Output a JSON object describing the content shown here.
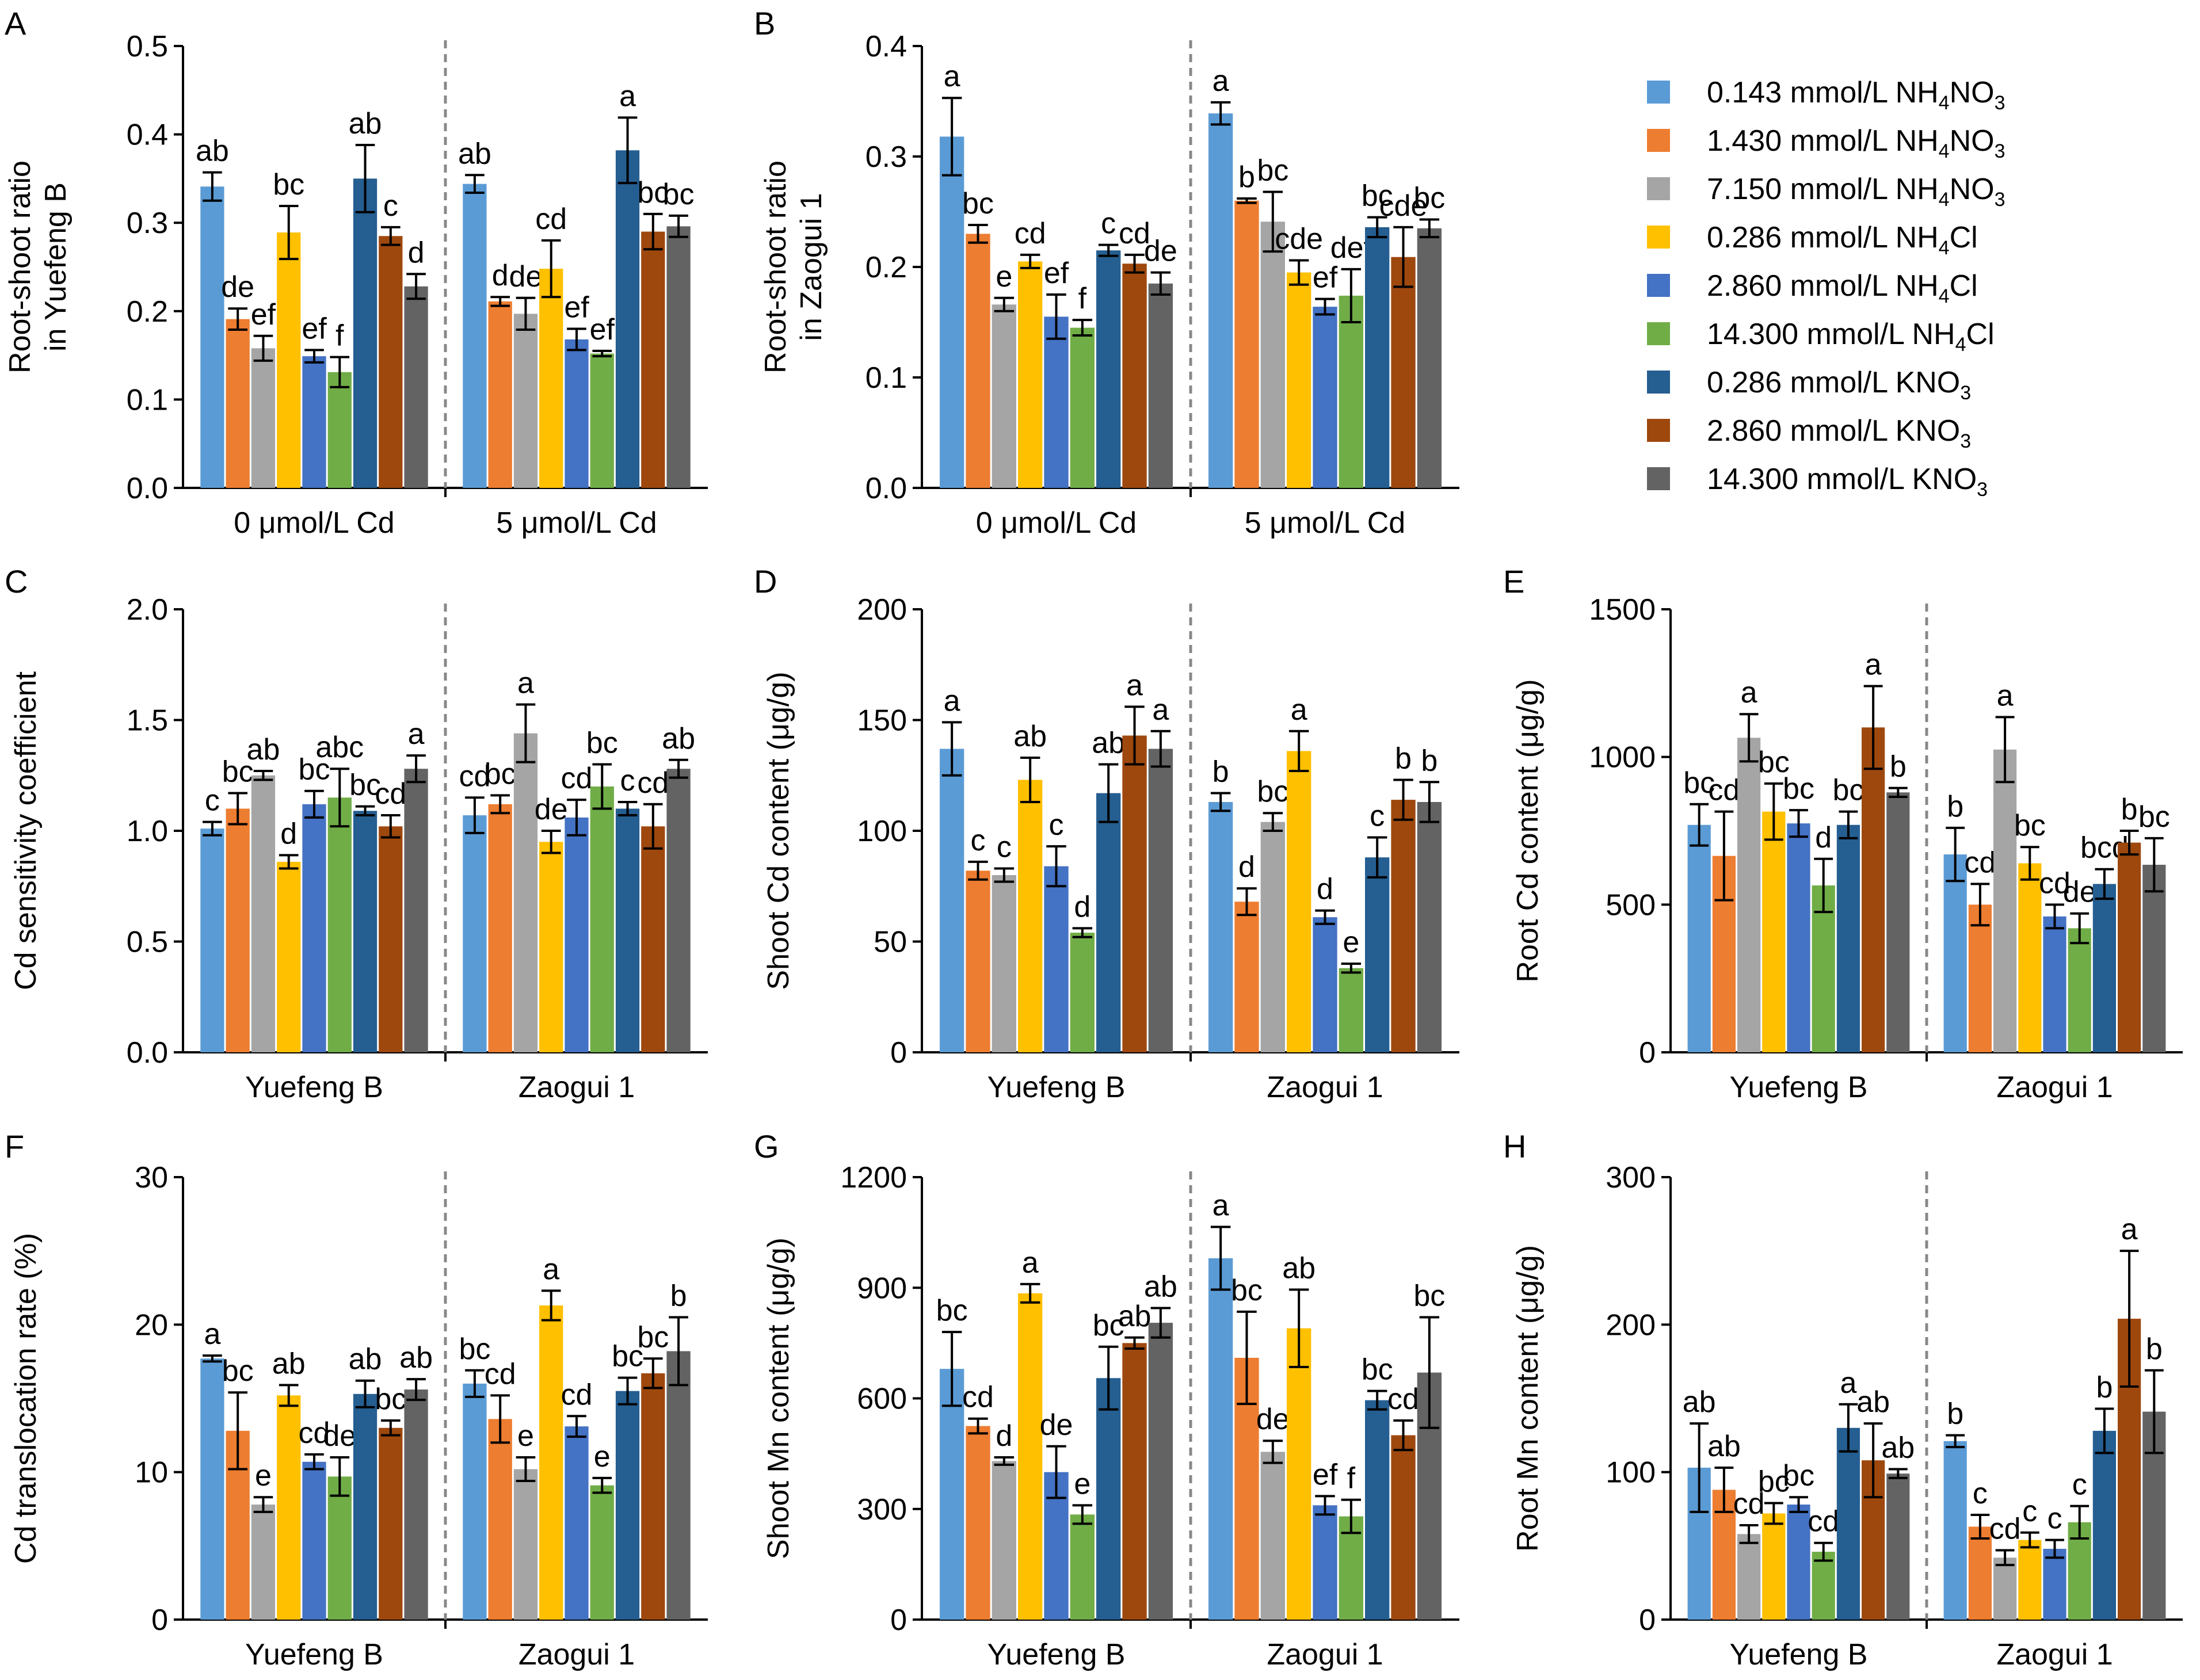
{
  "chart_data": [
    {
      "id": "A",
      "type": "bar",
      "panel_label": "A",
      "ylabel_lines": [
        "Root-shoot ratio",
        "in Yuefeng B"
      ],
      "ylim": [
        0,
        0.5
      ],
      "yticks": [
        "0.0",
        "0.1",
        "0.2",
        "0.3",
        "0.4",
        "0.5"
      ],
      "groups": [
        {
          "label": "0 μmol/L Cd",
          "values": [
            0.341,
            0.191,
            0.158,
            0.289,
            0.149,
            0.131,
            0.35,
            0.285,
            0.228
          ],
          "errors": [
            0.016,
            0.012,
            0.014,
            0.03,
            0.007,
            0.017,
            0.038,
            0.01,
            0.014
          ],
          "letters": [
            "ab",
            "de",
            "ef",
            "bc",
            "ef",
            "f",
            "ab",
            "c",
            "d"
          ]
        },
        {
          "label": "5 μmol/L Cd",
          "values": [
            0.344,
            0.211,
            0.197,
            0.248,
            0.168,
            0.152,
            0.382,
            0.29,
            0.296
          ],
          "errors": [
            0.01,
            0.005,
            0.018,
            0.032,
            0.012,
            0.003,
            0.037,
            0.02,
            0.012
          ],
          "letters": [
            "ab",
            "d",
            "de",
            "cd",
            "ef",
            "ef",
            "a",
            "bc",
            "bc"
          ]
        }
      ]
    },
    {
      "id": "B",
      "type": "bar",
      "panel_label": "B",
      "ylabel_lines": [
        "Root-shoot ratio",
        "in Zaogui 1"
      ],
      "ylim": [
        0,
        0.4
      ],
      "yticks": [
        "0.0",
        "0.1",
        "0.2",
        "0.3",
        "0.4"
      ],
      "groups": [
        {
          "label": "0 μmol/L Cd",
          "values": [
            0.318,
            0.23,
            0.166,
            0.205,
            0.155,
            0.145,
            0.215,
            0.203,
            0.185
          ],
          "errors": [
            0.035,
            0.008,
            0.006,
            0.006,
            0.02,
            0.007,
            0.005,
            0.008,
            0.01
          ],
          "letters": [
            "a",
            "bc",
            "e",
            "cd",
            "ef",
            "f",
            "c",
            "cd",
            "de"
          ]
        },
        {
          "label": "5 μmol/L Cd",
          "values": [
            0.339,
            0.26,
            0.241,
            0.195,
            0.164,
            0.174,
            0.236,
            0.209,
            0.235
          ],
          "errors": [
            0.01,
            0.002,
            0.027,
            0.011,
            0.007,
            0.024,
            0.009,
            0.027,
            0.008
          ],
          "letters": [
            "a",
            "b",
            "bc",
            "cde",
            "ef",
            "def",
            "bc",
            "cde",
            "bc"
          ]
        }
      ]
    },
    {
      "id": "C",
      "type": "bar",
      "panel_label": "C",
      "ylabel_lines": [
        "Cd sensitivity coefficient"
      ],
      "ylim": [
        0,
        2.0
      ],
      "yticks": [
        "0.0",
        "0.5",
        "1.0",
        "1.5",
        "2.0"
      ],
      "groups": [
        {
          "label": "Yuefeng B",
          "values": [
            1.01,
            1.1,
            1.25,
            0.86,
            1.12,
            1.15,
            1.09,
            1.02,
            1.28
          ],
          "errors": [
            0.03,
            0.07,
            0.02,
            0.03,
            0.06,
            0.13,
            0.02,
            0.05,
            0.06
          ],
          "letters": [
            "c",
            "bc",
            "ab",
            "d",
            "bc",
            "abc",
            "bc",
            "cd",
            "a"
          ]
        },
        {
          "label": "Zaogui 1",
          "values": [
            1.07,
            1.12,
            1.44,
            0.95,
            1.06,
            1.2,
            1.1,
            1.02,
            1.28
          ],
          "errors": [
            0.08,
            0.04,
            0.13,
            0.05,
            0.08,
            0.1,
            0.03,
            0.1,
            0.04
          ],
          "letters": [
            "cd",
            "bc",
            "a",
            "de",
            "cd",
            "bc",
            "c",
            "cd",
            "ab"
          ]
        }
      ]
    },
    {
      "id": "D",
      "type": "bar",
      "panel_label": "D",
      "ylabel_lines": [
        "Shoot Cd content (μg/g)"
      ],
      "ylim": [
        0,
        200
      ],
      "yticks": [
        "0",
        "50",
        "100",
        "150",
        "200"
      ],
      "groups": [
        {
          "label": "Yuefeng B",
          "values": [
            137,
            82,
            80,
            123,
            84,
            54,
            117,
            143,
            137
          ],
          "errors": [
            12,
            4,
            3,
            10,
            9,
            2,
            13,
            13,
            8
          ],
          "letters": [
            "a",
            "c",
            "c",
            "ab",
            "c",
            "d",
            "ab",
            "a",
            "a"
          ]
        },
        {
          "label": "Zaogui 1",
          "values": [
            113,
            68,
            104,
            136,
            61,
            38,
            88,
            114,
            113
          ],
          "errors": [
            4,
            6,
            4,
            9,
            3,
            2,
            9,
            9,
            9
          ],
          "letters": [
            "b",
            "d",
            "bc",
            "a",
            "d",
            "e",
            "c",
            "b",
            "b"
          ]
        }
      ]
    },
    {
      "id": "E",
      "type": "bar",
      "panel_label": "E",
      "ylabel_lines": [
        "Root Cd content (μg/g)"
      ],
      "ylim": [
        0,
        1500
      ],
      "yticks": [
        "0",
        "500",
        "1000",
        "1500"
      ],
      "groups": [
        {
          "label": "Yuefeng B",
          "values": [
            770,
            665,
            1065,
            815,
            775,
            565,
            770,
            1100,
            880
          ],
          "errors": [
            70,
            150,
            80,
            95,
            45,
            90,
            45,
            140,
            15
          ],
          "letters": [
            "bc",
            "cd",
            "a",
            "bc",
            "bc",
            "d",
            "bc",
            "a",
            "b"
          ]
        },
        {
          "label": "Zaogui 1",
          "values": [
            670,
            500,
            1025,
            640,
            460,
            420,
            570,
            710,
            635
          ],
          "errors": [
            90,
            70,
            110,
            55,
            40,
            50,
            50,
            40,
            90
          ],
          "letters": [
            "b",
            "cd",
            "a",
            "bc",
            "cd",
            "de",
            "bcd",
            "b",
            "bc"
          ]
        }
      ]
    },
    {
      "id": "F",
      "type": "bar",
      "panel_label": "F",
      "ylabel_lines": [
        "Cd translocation rate (%)"
      ],
      "ylim": [
        0,
        30
      ],
      "yticks": [
        "0",
        "10",
        "20",
        "30"
      ],
      "groups": [
        {
          "label": "Yuefeng B",
          "values": [
            17.7,
            12.8,
            7.8,
            15.2,
            10.7,
            9.7,
            15.3,
            13.0,
            15.6
          ],
          "errors": [
            0.2,
            2.6,
            0.5,
            0.7,
            0.5,
            1.3,
            0.9,
            0.5,
            0.7
          ],
          "letters": [
            "a",
            "bc",
            "e",
            "ab",
            "cd",
            "de",
            "ab",
            "bc",
            "ab"
          ]
        },
        {
          "label": "Zaogui 1",
          "values": [
            16.0,
            13.6,
            10.2,
            21.3,
            13.1,
            9.1,
            15.5,
            16.7,
            18.2
          ],
          "errors": [
            0.9,
            1.6,
            0.8,
            1.0,
            0.7,
            0.5,
            0.9,
            1.0,
            2.3
          ],
          "letters": [
            "bc",
            "cd",
            "e",
            "a",
            "cd",
            "e",
            "bc",
            "bc",
            "b"
          ]
        }
      ]
    },
    {
      "id": "G",
      "type": "bar",
      "panel_label": "G",
      "ylabel_lines": [
        "Shoot Mn content (μg/g)"
      ],
      "ylim": [
        0,
        1200
      ],
      "yticks": [
        "0",
        "300",
        "600",
        "900",
        "1200"
      ],
      "groups": [
        {
          "label": "Yuefeng B",
          "values": [
            680,
            525,
            430,
            885,
            400,
            285,
            655,
            750,
            805
          ],
          "errors": [
            100,
            20,
            10,
            25,
            70,
            25,
            85,
            15,
            40
          ],
          "letters": [
            "bc",
            "cd",
            "d",
            "a",
            "de",
            "e",
            "bc",
            "ab",
            "ab"
          ]
        },
        {
          "label": "Zaogui 1",
          "values": [
            980,
            710,
            455,
            790,
            310,
            280,
            595,
            500,
            670
          ],
          "errors": [
            85,
            125,
            30,
            105,
            25,
            45,
            25,
            40,
            150
          ],
          "letters": [
            "a",
            "bc",
            "de",
            "ab",
            "ef",
            "f",
            "bc",
            "cd",
            "bc"
          ]
        }
      ]
    },
    {
      "id": "H",
      "type": "bar",
      "panel_label": "H",
      "ylabel_lines": [
        "Root Mn content (μg/g)"
      ],
      "ylim": [
        0,
        300
      ],
      "yticks": [
        "0",
        "100",
        "200",
        "300"
      ],
      "groups": [
        {
          "label": "Yuefeng B",
          "values": [
            103,
            88,
            58,
            72,
            78,
            46,
            130,
            108,
            99
          ],
          "errors": [
            30,
            15,
            6,
            7,
            5,
            6,
            16,
            25,
            3
          ],
          "letters": [
            "ab",
            "ab",
            "cd",
            "bc",
            "bc",
            "cd",
            "a",
            "ab",
            "ab"
          ]
        },
        {
          "label": "Zaogui 1",
          "values": [
            121,
            63,
            42,
            54,
            48,
            66,
            128,
            204,
            141
          ],
          "errors": [
            4,
            8,
            5,
            5,
            6,
            11,
            15,
            46,
            28
          ],
          "letters": [
            "b",
            "c",
            "cd",
            "c",
            "c",
            "c",
            "b",
            "a",
            "b"
          ]
        }
      ]
    }
  ],
  "legend": [
    {
      "value": "0.143 mmol/L NH",
      "sub": "4",
      "tail": "NO",
      "sub2": "3",
      "color": "#5B9BD5"
    },
    {
      "value": "1.430 mmol/L NH",
      "sub": "4",
      "tail": "NO",
      "sub2": "3",
      "color": "#ED7D31"
    },
    {
      "value": "7.150 mmol/L NH",
      "sub": "4",
      "tail": "NO",
      "sub2": "3",
      "color": "#A5A5A5"
    },
    {
      "value": "0.286 mmol/L NH",
      "sub": "4",
      "tail": "Cl",
      "sub2": "",
      "color": "#FFC000"
    },
    {
      "value": "2.860 mmol/L NH",
      "sub": "4",
      "tail": "Cl",
      "sub2": "",
      "color": "#4472C4"
    },
    {
      "value": "14.300 mmol/L NH",
      "sub": "4",
      "tail": "Cl",
      "sub2": "",
      "color": "#70AD47"
    },
    {
      "value": "0.286 mmol/L KNO",
      "sub": "3",
      "tail": "",
      "sub2": "",
      "color": "#255E91"
    },
    {
      "value": "2.860 mmol/L KNO",
      "sub": "3",
      "tail": "",
      "sub2": "",
      "color": "#9E480E"
    },
    {
      "value": "14.300 mmol/L KNO",
      "sub": "3",
      "tail": "",
      "sub2": "",
      "color": "#636363"
    }
  ]
}
